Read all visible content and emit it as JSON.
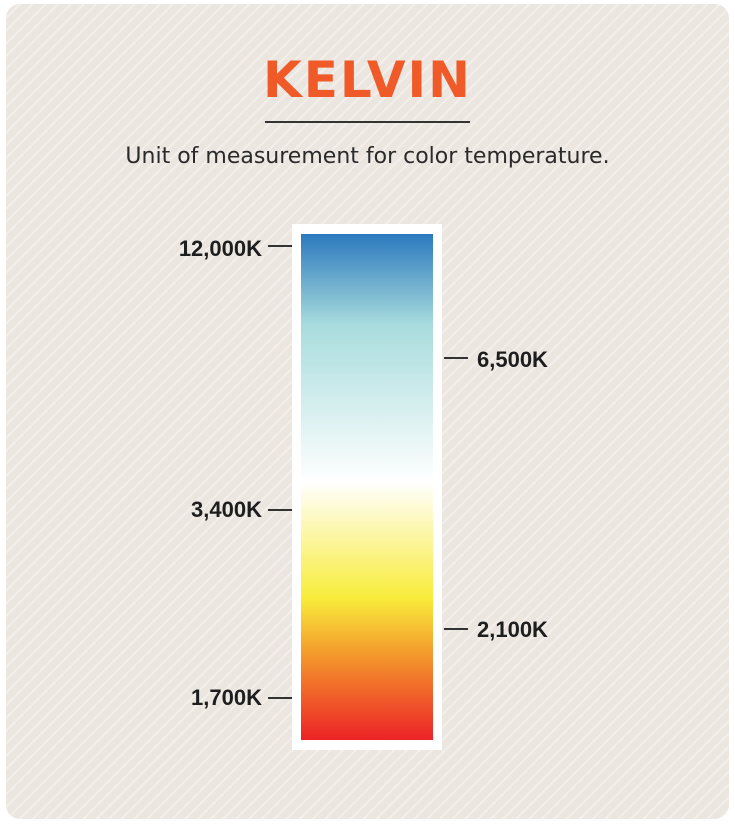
{
  "title": "KELVIN",
  "subtitle": "Unit of measurement for color temperature.",
  "colors": {
    "title": "#f05a28",
    "background": "#ece6e1",
    "gradient": [
      "#2b79be",
      "#a8dcdd",
      "#ffffff",
      "#f8ec3a",
      "#f49a2c",
      "#ec2227"
    ]
  },
  "scale": {
    "top": {
      "label": "12,000K",
      "value": 12000
    },
    "left_mid": {
      "label": "3,400K",
      "value": 3400
    },
    "left_bottom": {
      "label": "1,700K",
      "value": 1700
    },
    "right_upper": {
      "label": "6,500K",
      "value": 6500
    },
    "right_lower": {
      "label": "2,100K",
      "value": 2100
    }
  }
}
